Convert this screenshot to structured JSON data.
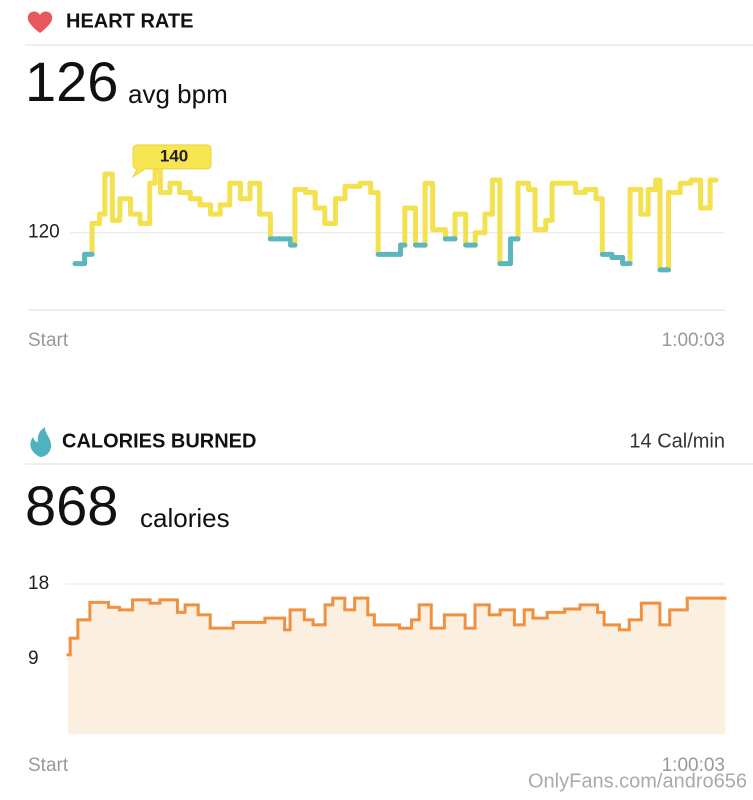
{
  "chart_data": [
    {
      "type": "line",
      "title": "HEART RATE",
      "summary_value": 126,
      "summary_unit": "avg bpm",
      "x": [
        0,
        0.9,
        1.6,
        2.3,
        2.8,
        3.5,
        4.2,
        5.2,
        6.1,
        7.0,
        7.5,
        8.0,
        8.9,
        9.8,
        10.8,
        11.7,
        12.7,
        13.6,
        14.5,
        15.5,
        16.4,
        17.3,
        18.3,
        19.2,
        20.2,
        20.6,
        21.6,
        22.5,
        23.4,
        24.4,
        25.3,
        26.7,
        27.7,
        28.4,
        29.5,
        30.5,
        30.9,
        31.9,
        32.8,
        33.5,
        34.7,
        35.6,
        36.6,
        37.5,
        38.4,
        39.1,
        39.8,
        40.8,
        41.5,
        42.5,
        43.1,
        44.1,
        44.7,
        45.7,
        46.9,
        47.8,
        48.8,
        49.4,
        50.3,
        51.3,
        52.0,
        53.0,
        53.7,
        54.4,
        54.8,
        55.6,
        56.7,
        57.7,
        58.6,
        59.5
      ],
      "values": [
        110,
        113,
        123,
        126,
        139,
        124,
        131,
        126,
        123,
        136,
        140,
        133,
        136,
        133,
        131,
        129,
        126,
        129,
        136,
        131,
        136,
        126,
        118,
        118,
        116,
        134,
        133,
        128,
        123,
        131,
        135,
        136,
        133,
        113,
        113,
        116,
        128,
        116,
        136,
        121,
        118,
        126,
        116,
        120,
        126,
        137,
        110,
        118,
        136,
        134,
        121,
        124,
        136,
        136,
        133,
        134,
        131,
        113,
        112,
        110,
        134,
        126,
        134,
        137,
        108,
        133,
        136,
        137,
        128,
        137
      ],
      "xlim": [
        0,
        60.05
      ],
      "ylim": [
        95,
        150
      ],
      "yticks": [
        120
      ],
      "xticks": [
        {
          "value": 0,
          "label": "Start"
        },
        {
          "value": 60.05,
          "label": "1:00:03"
        }
      ],
      "step": true,
      "grid": true,
      "color_above": "#f3e14f",
      "color_below": "#5cb6bd",
      "annotation": 140
    },
    {
      "type": "area",
      "title": "CALORIES BURNED",
      "rate": "14 Cal/min",
      "summary_value": 868,
      "summary_unit": "calories",
      "x": [
        0,
        0.2,
        0.9,
        2.0,
        3.7,
        4.7,
        5.9,
        7.5,
        8.4,
        10.0,
        10.7,
        11.9,
        13.0,
        15.1,
        18.0,
        19.8,
        20.3,
        21.6,
        22.4,
        23.5,
        24.2,
        25.3,
        26.2,
        27.4,
        28.0,
        30.3,
        31.4,
        32.1,
        33.2,
        34.4,
        36.3,
        37.2,
        38.5,
        39.5,
        40.8,
        41.7,
        42.5,
        43.8,
        45.4,
        46.8,
        48.4,
        49.0,
        50.4,
        51.3,
        52.4,
        54.1,
        55.0,
        56.6,
        59.7
      ],
      "values": [
        9.5,
        11.5,
        13.7,
        15.8,
        15.2,
        14.9,
        16.1,
        15.7,
        16.1,
        14.6,
        15.5,
        14.3,
        12.7,
        13.4,
        13.9,
        12.5,
        14.9,
        13.7,
        13.1,
        15.5,
        16.3,
        14.9,
        16.3,
        14.3,
        13.1,
        12.7,
        13.7,
        15.5,
        12.7,
        14.3,
        12.7,
        15.5,
        14.3,
        14.9,
        13.1,
        14.9,
        13.9,
        14.6,
        15.0,
        15.5,
        14.6,
        13.1,
        12.5,
        13.7,
        15.7,
        13.1,
        14.9,
        16.3,
        16.3
      ],
      "xlim": [
        0,
        60.05
      ],
      "ylim": [
        0,
        18
      ],
      "yticks": [
        9,
        18
      ],
      "xticks": [
        {
          "value": 0,
          "label": "Start"
        },
        {
          "value": 60.05,
          "label": "1:00:03"
        }
      ],
      "step": true,
      "grid": true,
      "color": "#ef9140",
      "fill": "#fbf0df"
    }
  ],
  "watermark": "OnlyFans.com/andro656"
}
